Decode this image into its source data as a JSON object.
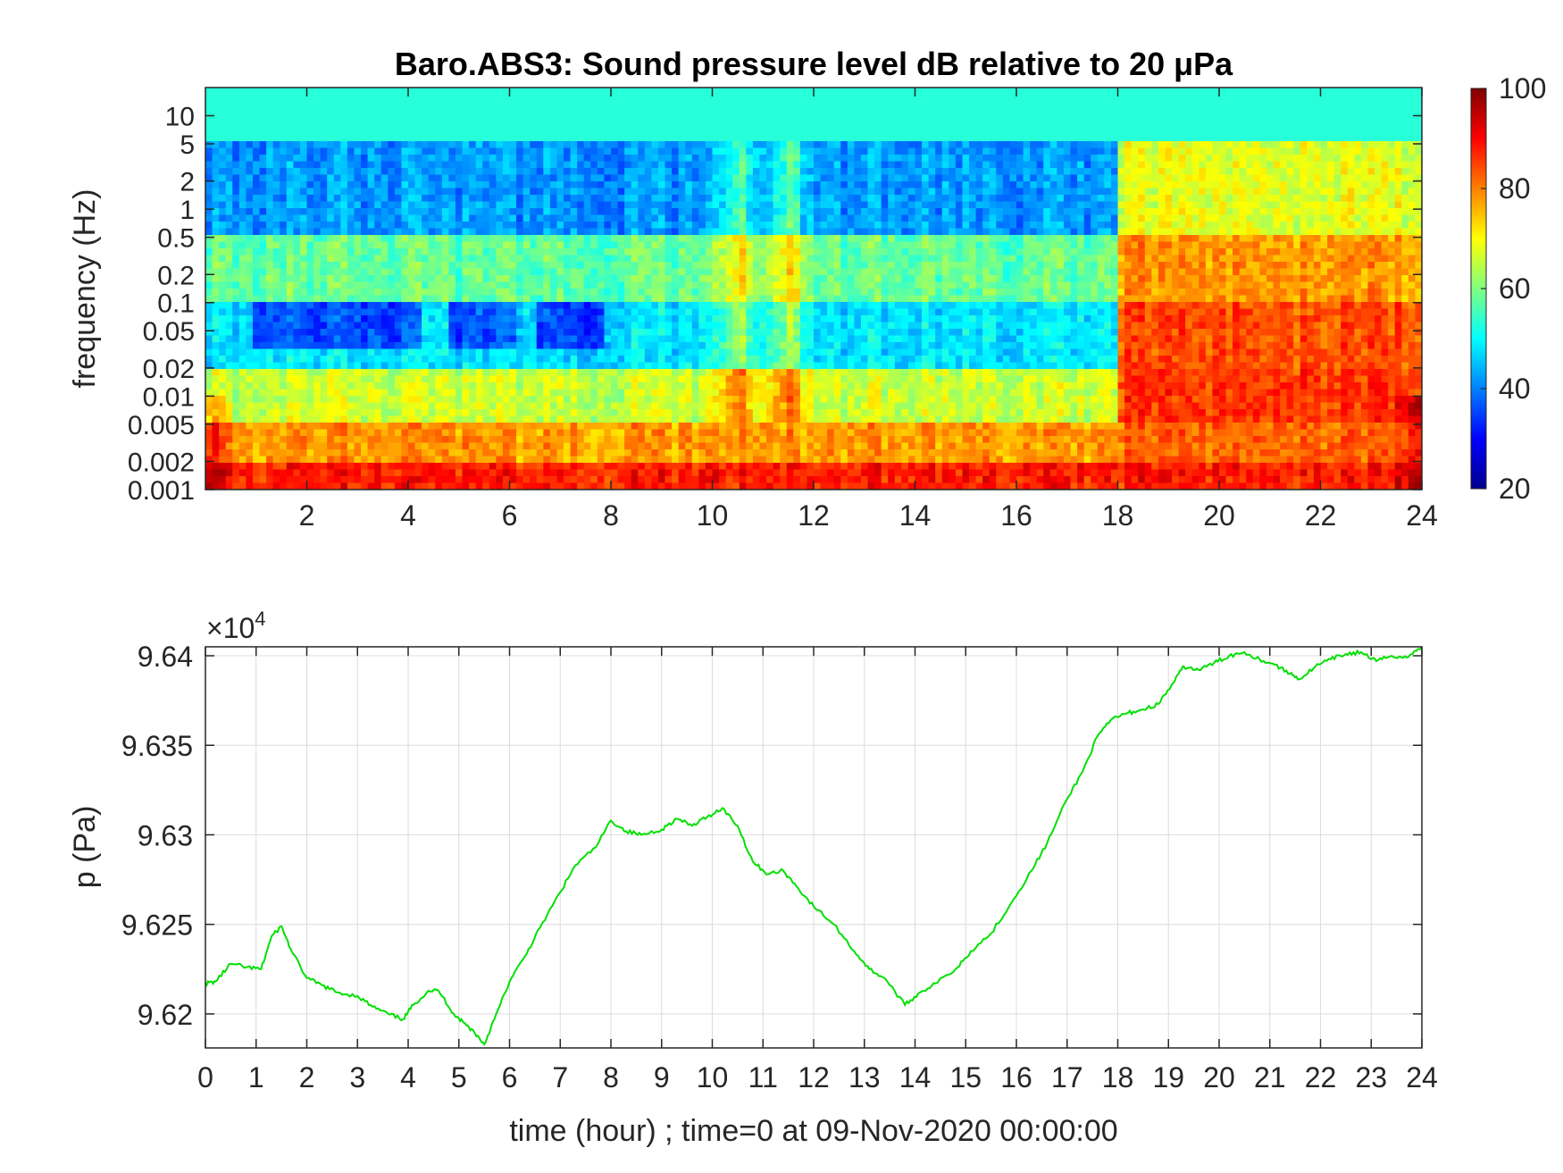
{
  "chart_data": [
    {
      "type": "heatmap",
      "title": "Baro.ABS3: Sound pressure level dB relative to 20 μPa",
      "ylabel": "frequency (Hz)",
      "xlabel": "",
      "xlim": [
        0,
        24
      ],
      "ylim": [
        0.001,
        20
      ],
      "yscale": "log",
      "x_ticks": [
        2,
        4,
        6,
        8,
        10,
        12,
        14,
        16,
        18,
        20,
        22,
        24
      ],
      "y_ticks": [
        10,
        5,
        2,
        1,
        0.5,
        0.2,
        0.1,
        0.05,
        0.02,
        0.01,
        0.005,
        0.002,
        0.001
      ],
      "y_tick_labels": [
        "10",
        "5",
        "2",
        "1",
        "0.5",
        "0.2",
        "0.1",
        "0.05",
        "0.02",
        "0.01",
        "0.005",
        "0.002",
        "0.001"
      ],
      "colormap": "jet",
      "colorbar": {
        "range": [
          20,
          100
        ],
        "ticks": [
          100,
          80,
          60,
          40,
          20
        ],
        "tick_labels": [
          "100",
          "80",
          "60",
          "40",
          "20"
        ]
      },
      "bands": [
        {
          "f_min": 5,
          "f_max": 20,
          "db_before_18h": 53,
          "db_after_18h": 53
        },
        {
          "f_min": 0.5,
          "f_max": 5,
          "db_before_18h": 42,
          "db_after_18h": 68
        },
        {
          "f_min": 0.1,
          "f_max": 0.5,
          "db_before_18h": 58,
          "db_after_18h": 78
        },
        {
          "f_min": 0.02,
          "f_max": 0.1,
          "db_before_18h": 48,
          "db_after_18h": 84
        },
        {
          "f_min": 0.005,
          "f_max": 0.02,
          "db_before_18h": 66,
          "db_after_18h": 86
        },
        {
          "f_min": 0.002,
          "f_max": 0.005,
          "db_before_18h": 78,
          "db_after_18h": 82
        },
        {
          "f_min": 0.001,
          "f_max": 0.002,
          "db_before_18h": 88,
          "db_after_18h": 88
        }
      ],
      "events_hours": [
        10.5,
        11.5
      ],
      "quiet_windows_hours": [
        [
          1,
          4.2
        ],
        [
          4.8,
          6.2
        ],
        [
          6.6,
          7.9
        ]
      ]
    },
    {
      "type": "line",
      "xlabel": "time (hour) ; time=0 at 09-Nov-2020 00:00:00",
      "ylabel": "p (Pa)",
      "xlim": [
        0,
        24
      ],
      "ylim": [
        96181,
        96405
      ],
      "y_exponent_label": "×10",
      "y_exponent": "4",
      "x_ticks": [
        0,
        1,
        2,
        3,
        4,
        5,
        6,
        7,
        8,
        9,
        10,
        11,
        12,
        13,
        14,
        15,
        16,
        17,
        18,
        19,
        20,
        21,
        22,
        23,
        24
      ],
      "y_ticks": [
        96200,
        96250,
        96300,
        96350,
        96400
      ],
      "y_tick_labels": [
        "9.62",
        "9.625",
        "9.63",
        "9.635",
        "9.64"
      ],
      "grid": true,
      "line_color": "#00e000",
      "series": [
        {
          "x": [
            0,
            0.2,
            0.5,
            0.8,
            1.1,
            1.3,
            1.5,
            1.7,
            2.0,
            2.3,
            2.6,
            3.0,
            3.3,
            3.6,
            3.9,
            4.1,
            4.4,
            4.6,
            4.9,
            5.1,
            5.3,
            5.5,
            5.7,
            6.0,
            6.3,
            6.6,
            7.0,
            7.3,
            7.7,
            8.0,
            8.3,
            8.6,
            9.0,
            9.3,
            9.6,
            9.9,
            10.2,
            10.5,
            10.8,
            11.1,
            11.4,
            11.7,
            12.0,
            12.4,
            12.8,
            13.1,
            13.4,
            13.8,
            14.1,
            14.4,
            14.8,
            15.1,
            15.5,
            15.9,
            16.3,
            16.6,
            17.0,
            17.3,
            17.6,
            17.9,
            18.2,
            18.5,
            18.8,
            19.1,
            19.3,
            19.6,
            19.9,
            20.2,
            20.5,
            20.8,
            21.1,
            21.4,
            21.6,
            21.9,
            22.2,
            22.5,
            22.8,
            23.1,
            23.4,
            23.7,
            24.0
          ],
          "y": [
            96217,
            96218,
            96228,
            96226,
            96225,
            96243,
            96249,
            96235,
            96220,
            96216,
            96212,
            96210,
            96204,
            96200,
            96197,
            96205,
            96213,
            96213,
            96200,
            96195,
            96190,
            96183,
            96197,
            96218,
            96232,
            96248,
            96268,
            96283,
            96293,
            96308,
            96302,
            96300,
            96303,
            96309,
            96305,
            96310,
            96315,
            96305,
            96285,
            96278,
            96280,
            96270,
            96260,
            96250,
            96235,
            96225,
            96220,
            96205,
            96212,
            96217,
            96225,
            96235,
            96245,
            96262,
            96280,
            96295,
            96320,
            96335,
            96355,
            96365,
            96368,
            96370,
            96373,
            96385,
            96394,
            96392,
            96396,
            96400,
            96402,
            96398,
            96395,
            96390,
            96387,
            96394,
            96398,
            96401,
            96402,
            96397,
            96400,
            96399,
            96405
          ]
        }
      ]
    }
  ]
}
